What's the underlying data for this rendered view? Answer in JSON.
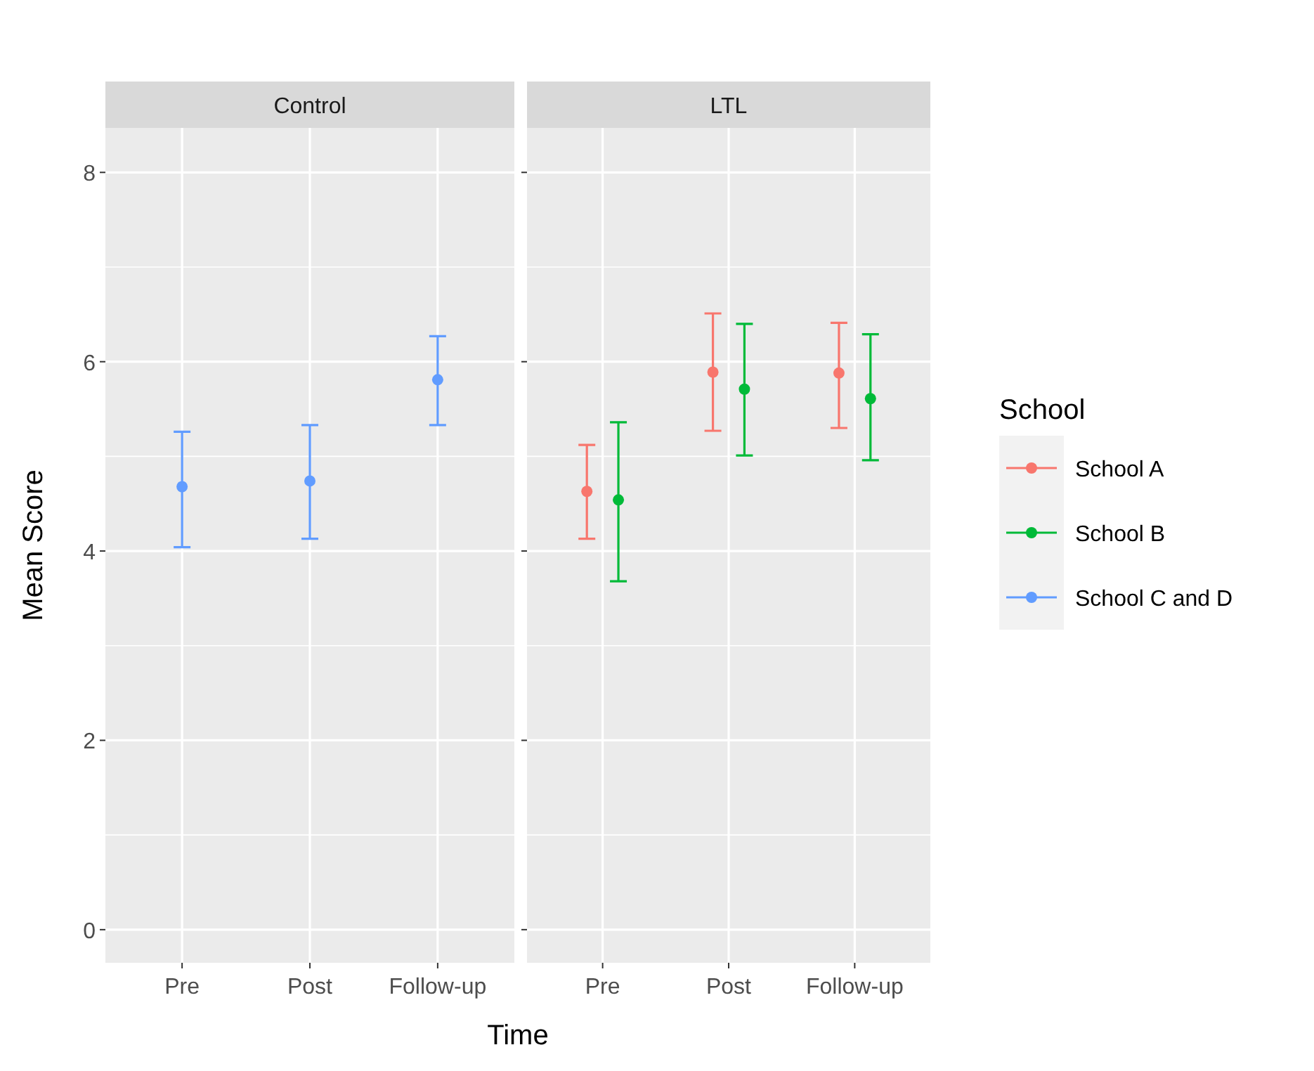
{
  "chart_data": [
    {
      "type": "scatter",
      "title": "Control",
      "ylabel": "Mean Score",
      "categories": [
        "Pre",
        "Post",
        "Follow-up"
      ],
      "ylim": [
        -0.35,
        8.47
      ],
      "yticks": [
        0,
        {
          "value": 1,
          "label": null
        },
        2,
        {
          "value": 3,
          "label": null
        },
        4,
        {
          "value": 5,
          "label": null
        },
        6,
        {
          "value": 7,
          "label": null
        },
        8
      ],
      "grid": true,
      "marker": "circle",
      "legend": "right",
      "series": [
        {
          "name": "School C and D",
          "color": "#619cff",
          "values": [
            4.68,
            4.74,
            5.81
          ],
          "errors": [
            [
              4.04,
              5.26
            ],
            [
              4.13,
              5.33
            ],
            [
              5.33,
              6.27
            ]
          ]
        }
      ]
    },
    {
      "type": "scatter",
      "title": "LTL",
      "xlabel": "Time",
      "legend_title": "School",
      "categories": [
        "Pre",
        "Post",
        "Follow-up"
      ],
      "ylim": [
        -0.35,
        8.47
      ],
      "yticks": [
        0,
        {
          "value": 1,
          "label": null
        },
        2,
        {
          "value": 3,
          "label": null
        },
        4,
        {
          "value": 5,
          "label": null
        },
        6,
        {
          "value": 7,
          "label": null
        },
        8
      ],
      "grid": true,
      "marker": "circle",
      "legend": "right",
      "tick_labels": "x",
      "series": [
        {
          "name": "School A",
          "color": "#f8766d",
          "values": [
            4.63,
            5.89,
            5.88
          ],
          "errors": [
            [
              4.13,
              5.12
            ],
            [
              5.27,
              6.51
            ],
            [
              5.3,
              6.41
            ]
          ]
        },
        {
          "name": "School B",
          "color": "#00ba38",
          "values": [
            4.54,
            5.71,
            5.61
          ],
          "errors": [
            [
              3.68,
              5.36
            ],
            [
              5.01,
              6.4
            ],
            [
              4.96,
              6.29
            ]
          ]
        }
      ]
    }
  ]
}
